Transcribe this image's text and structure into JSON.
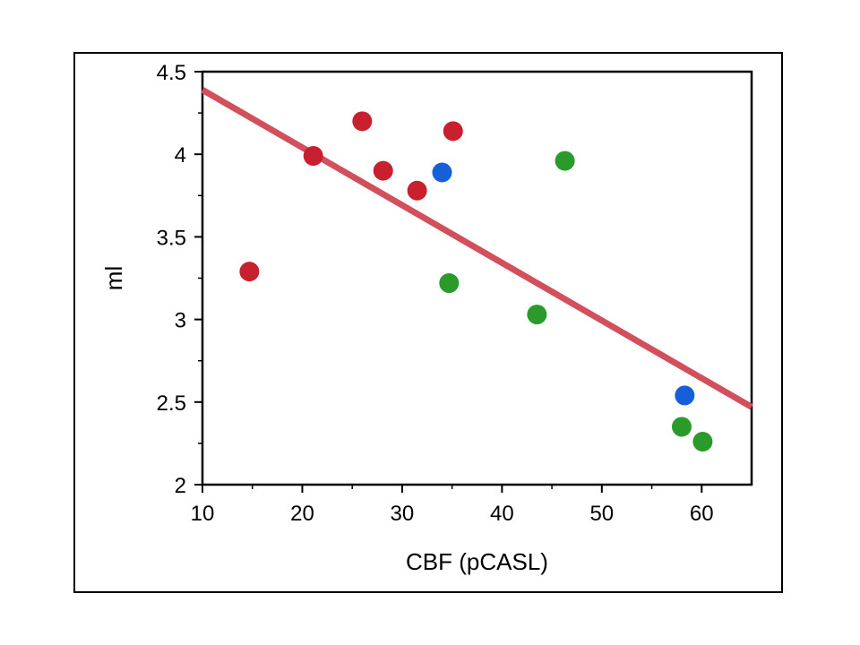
{
  "chart_data": {
    "type": "scatter",
    "title": "",
    "xlabel": "CBF (pCASL)",
    "ylabel": "ml",
    "xlim": [
      10,
      65
    ],
    "ylim": [
      2,
      4.5
    ],
    "x_ticks": [
      10,
      20,
      30,
      40,
      50,
      60
    ],
    "y_ticks": [
      2,
      2.5,
      3,
      3.5,
      4,
      4.5
    ],
    "x_tick_labels": [
      "10",
      "20",
      "30",
      "40",
      "50",
      "60"
    ],
    "y_tick_labels": [
      "2",
      "2.5",
      "3",
      "3.5",
      "4",
      "4.5"
    ],
    "grid": false,
    "legend": "none",
    "series": [
      {
        "name": "red group",
        "color": "#c8202e",
        "points": [
          {
            "x": 14.7,
            "y": 3.29
          },
          {
            "x": 21.1,
            "y": 3.99
          },
          {
            "x": 26.0,
            "y": 4.2
          },
          {
            "x": 28.1,
            "y": 3.9
          },
          {
            "x": 31.5,
            "y": 3.78
          },
          {
            "x": 35.1,
            "y": 4.14
          }
        ]
      },
      {
        "name": "blue group",
        "color": "#1560d8",
        "points": [
          {
            "x": 34.0,
            "y": 3.89
          },
          {
            "x": 58.3,
            "y": 2.54
          }
        ]
      },
      {
        "name": "green group",
        "color": "#2a9a2a",
        "points": [
          {
            "x": 34.7,
            "y": 3.22
          },
          {
            "x": 43.5,
            "y": 3.03
          },
          {
            "x": 46.3,
            "y": 3.96
          },
          {
            "x": 58.0,
            "y": 2.35
          },
          {
            "x": 60.1,
            "y": 2.26
          }
        ]
      }
    ],
    "trend_line": {
      "color": "#d2505c",
      "start": {
        "x": 10,
        "y": 4.39
      },
      "end": {
        "x": 65,
        "y": 2.47
      }
    }
  }
}
